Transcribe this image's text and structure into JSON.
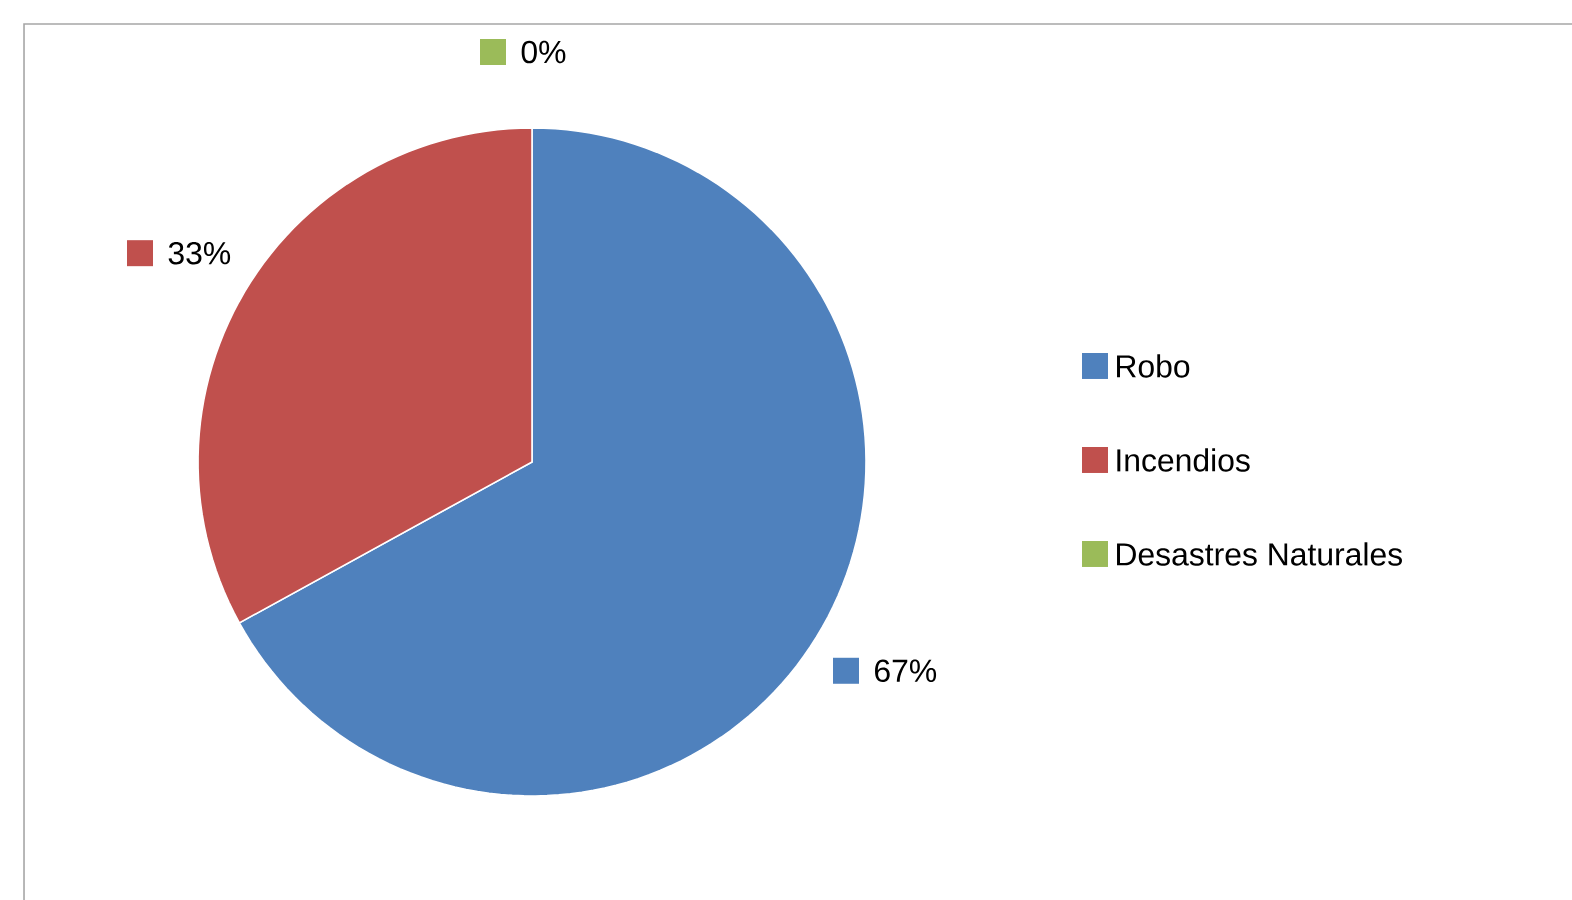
{
  "chart_data": {
    "type": "pie",
    "categories": [
      "Robo",
      "Incendios",
      "Desastres Naturales"
    ],
    "values": [
      67,
      33,
      0
    ],
    "colors": [
      "#4f81bd",
      "#c0504d",
      "#9bbb59"
    ],
    "value_labels": [
      "67%",
      "33%",
      "0%"
    ],
    "legend": "right"
  }
}
